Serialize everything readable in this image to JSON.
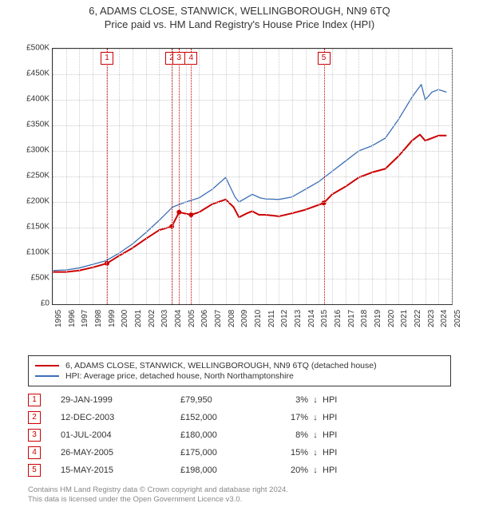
{
  "title": {
    "line1": "6, ADAMS CLOSE, STANWICK, WELLINGBOROUGH, NN9 6TQ",
    "line2": "Price paid vs. HM Land Registry's House Price Index (HPI)",
    "fontsize": 13,
    "color": "#333333"
  },
  "chart": {
    "type": "line",
    "background_color": "#ffffff",
    "border_color": "#333333",
    "grid_color": "#cccccc",
    "xlim": [
      1995,
      2025
    ],
    "ylim": [
      0,
      500000
    ],
    "ytick_step": 50000,
    "yticks_labels": [
      "£0",
      "£50K",
      "£100K",
      "£150K",
      "£200K",
      "£250K",
      "£300K",
      "£350K",
      "£400K",
      "£450K",
      "£500K"
    ],
    "xticks": [
      1995,
      1996,
      1997,
      1998,
      1999,
      2000,
      2001,
      2002,
      2003,
      2004,
      2005,
      2006,
      2007,
      2008,
      2009,
      2010,
      2011,
      2012,
      2013,
      2014,
      2015,
      2016,
      2017,
      2018,
      2019,
      2020,
      2021,
      2022,
      2023,
      2024,
      2025
    ],
    "label_fontsize": 10,
    "series": [
      {
        "name": "property",
        "legend": "6, ADAMS CLOSE, STANWICK, WELLINGBOROUGH, NN9 6TQ (detached house)",
        "color": "#cc0000",
        "line_width": 2,
        "data": [
          [
            1995,
            63000
          ],
          [
            1996,
            63000
          ],
          [
            1997,
            66000
          ],
          [
            1998,
            72000
          ],
          [
            1999.08,
            79950
          ],
          [
            2000,
            95000
          ],
          [
            2001,
            110000
          ],
          [
            2002,
            128000
          ],
          [
            2003,
            145000
          ],
          [
            2003.95,
            152000
          ],
          [
            2004.5,
            180000
          ],
          [
            2005.4,
            175000
          ],
          [
            2006,
            180000
          ],
          [
            2007,
            196000
          ],
          [
            2008,
            205000
          ],
          [
            2008.6,
            190000
          ],
          [
            2009,
            170000
          ],
          [
            2009.6,
            178000
          ],
          [
            2010,
            182000
          ],
          [
            2010.5,
            175000
          ],
          [
            2011,
            175000
          ],
          [
            2012,
            172000
          ],
          [
            2013,
            178000
          ],
          [
            2014,
            185000
          ],
          [
            2015.37,
            198000
          ],
          [
            2016,
            215000
          ],
          [
            2017,
            230000
          ],
          [
            2018,
            248000
          ],
          [
            2019,
            258000
          ],
          [
            2020,
            265000
          ],
          [
            2021,
            290000
          ],
          [
            2022,
            320000
          ],
          [
            2022.6,
            332000
          ],
          [
            2023,
            320000
          ],
          [
            2024,
            330000
          ],
          [
            2024.6,
            330000
          ]
        ]
      },
      {
        "name": "hpi",
        "legend": "HPI: Average price, detached house, North Northamptonshire",
        "color": "#3b6fb6",
        "line_width": 1.3,
        "data": [
          [
            1995,
            66000
          ],
          [
            1996,
            67000
          ],
          [
            1997,
            71000
          ],
          [
            1998,
            78000
          ],
          [
            1999,
            85000
          ],
          [
            2000,
            100000
          ],
          [
            2001,
            118000
          ],
          [
            2002,
            140000
          ],
          [
            2003,
            164000
          ],
          [
            2004,
            190000
          ],
          [
            2005,
            200000
          ],
          [
            2006,
            208000
          ],
          [
            2007,
            225000
          ],
          [
            2008,
            248000
          ],
          [
            2008.7,
            210000
          ],
          [
            2009,
            200000
          ],
          [
            2010,
            215000
          ],
          [
            2010.6,
            208000
          ],
          [
            2011,
            206000
          ],
          [
            2012,
            205000
          ],
          [
            2013,
            210000
          ],
          [
            2014,
            225000
          ],
          [
            2015,
            240000
          ],
          [
            2016,
            260000
          ],
          [
            2017,
            280000
          ],
          [
            2018,
            300000
          ],
          [
            2019,
            310000
          ],
          [
            2020,
            325000
          ],
          [
            2021,
            362000
          ],
          [
            2022,
            405000
          ],
          [
            2022.7,
            430000
          ],
          [
            2023,
            400000
          ],
          [
            2023.5,
            415000
          ],
          [
            2024,
            420000
          ],
          [
            2024.6,
            415000
          ]
        ]
      }
    ],
    "sale_markers": [
      {
        "n": "1",
        "x": 1999.08,
        "y": 79950,
        "color": "#cc0000"
      },
      {
        "n": "2",
        "x": 2003.95,
        "y": 152000,
        "color": "#cc0000"
      },
      {
        "n": "3",
        "x": 2004.5,
        "y": 180000,
        "color": "#cc0000"
      },
      {
        "n": "4",
        "x": 2005.4,
        "y": 175000,
        "color": "#cc0000"
      },
      {
        "n": "5",
        "x": 2015.37,
        "y": 198000,
        "color": "#cc0000"
      }
    ]
  },
  "legend": {
    "border_color": "#333333",
    "items": [
      {
        "color": "#cc0000",
        "text": "6, ADAMS CLOSE, STANWICK, WELLINGBOROUGH, NN9 6TQ (detached house)"
      },
      {
        "color": "#3b6fb6",
        "text": "HPI: Average price, detached house, North Northamptonshire"
      }
    ]
  },
  "sales_table": {
    "box_color": "#cc0000",
    "arrow_glyph": "↓",
    "hpi_label": "HPI",
    "rows": [
      {
        "n": "1",
        "date": "29-JAN-1999",
        "price": "£79,950",
        "pct": "3%"
      },
      {
        "n": "2",
        "date": "12-DEC-2003",
        "price": "£152,000",
        "pct": "17%"
      },
      {
        "n": "3",
        "date": "01-JUL-2004",
        "price": "£180,000",
        "pct": "8%"
      },
      {
        "n": "4",
        "date": "26-MAY-2005",
        "price": "£175,000",
        "pct": "15%"
      },
      {
        "n": "5",
        "date": "15-MAY-2015",
        "price": "£198,000",
        "pct": "20%"
      }
    ]
  },
  "footer": {
    "line1": "Contains HM Land Registry data © Crown copyright and database right 2024.",
    "line2": "This data is licensed under the Open Government Licence v3.0.",
    "color": "#888888",
    "fontsize": 9.5
  }
}
